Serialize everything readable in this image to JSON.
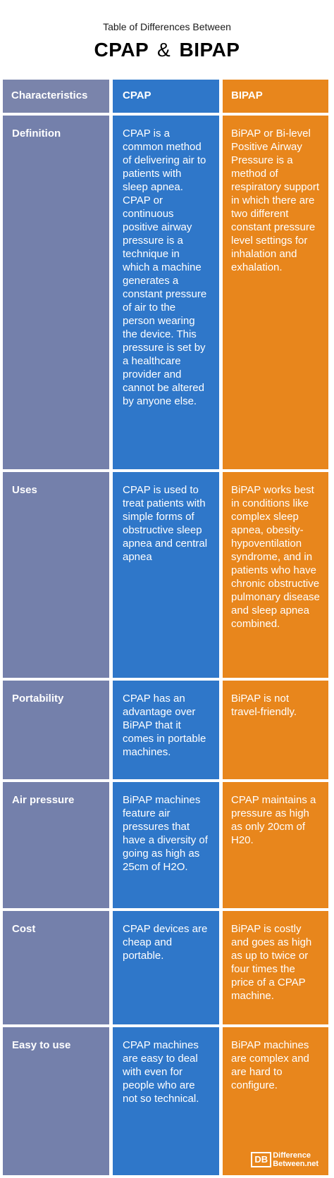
{
  "header": {
    "subtitle": "Table of Differences Between",
    "title_left": "CPAP",
    "title_amp": "&",
    "title_right": "BIPAP"
  },
  "table": {
    "columns": [
      "Characteristics",
      "CPAP",
      "BIPAP"
    ],
    "rows": [
      {
        "label": "Definition",
        "cpap": "CPAP is a common method of delivering air to patients with sleep apnea. CPAP or continuous positive airway pressure is a technique in which a machine generates a constant pressure of air to the person wearing the device. This pressure is set by a healthcare provider and cannot be altered by anyone else.",
        "bipap": "BiPAP or Bi-level Positive Airway Pressure is a method of respiratory support in which there are two different constant pressure level settings for inhalation and exhalation."
      },
      {
        "label": "Uses",
        "cpap": "CPAP is used to treat patients with simple forms of obstructive sleep apnea and central apnea",
        "bipap": "BiPAP works best in conditions like complex sleep apnea, obesity-hypoventilation syndrome, and in patients who have chronic obstructive pulmonary disease and sleep apnea combined."
      },
      {
        "label": "Portability",
        "cpap": "CPAP has an advantage over BiPAP that it comes in portable machines.",
        "bipap": "BiPAP is not travel-friendly."
      },
      {
        "label": "Air pressure",
        "cpap": "BiPAP machines feature air pressures that have a diversity of going as high as 25cm of H2O.",
        "bipap": "CPAP maintains a pressure as high as only 20cm of H20."
      },
      {
        "label": "Cost",
        "cpap": "CPAP devices are cheap and portable.",
        "bipap": "BiPAP is costly and goes as high as up to twice or four times the price of a CPAP machine."
      },
      {
        "label": "Easy to use",
        "cpap": "CPAP machines are easy to deal with even for people who are not so technical.",
        "bipap": "BiPAP machines are complex and are hard to configure."
      }
    ]
  },
  "logo": {
    "mark": "DB",
    "line1": "Difference",
    "line2": "Between.net"
  },
  "colors": {
    "characteristics_col": "#7480ab",
    "cpap_col": "#2f77c9",
    "bipap_col": "#e8861c"
  }
}
